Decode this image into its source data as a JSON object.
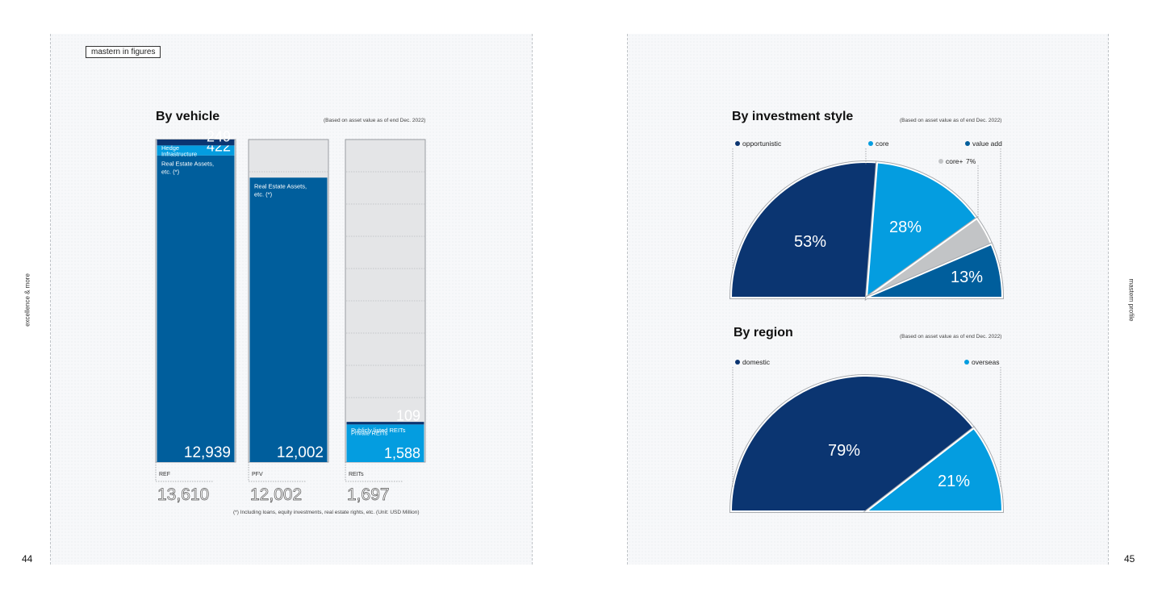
{
  "tag": "mastern in figures",
  "side_left": "excellence & more",
  "side_right": "mastern profile",
  "page_left": "44",
  "page_right": "45",
  "basis_note": "(Based on asset value as of end Dec. 2022)",
  "footnote": "(*) Including loans, equity investments, real estate rights, etc. (Unit: USD Million)",
  "colors": {
    "navy": "#0b3571",
    "mid": "#005e9c",
    "light": "#049de0",
    "grey": "#c2c4c6"
  },
  "chart_data": [
    {
      "type": "bar",
      "title": "By vehicle",
      "categories": [
        "REF",
        "PFV",
        "REITs"
      ],
      "totals": [
        "13,610",
        "12,002",
        "1,697"
      ],
      "ylim": [
        0,
        13610
      ],
      "stacks": [
        {
          "category": "REF",
          "segments": [
            {
              "name": "Real Estate Assets, etc. (*)",
              "value": 12939,
              "label": "12,939",
              "color": "#005e9c"
            },
            {
              "name": "Infrastructure",
              "value": 422,
              "label": "422",
              "color": "#049de0"
            },
            {
              "name": "Hedge",
              "value": 249,
              "label": "249",
              "color": "#0b3571"
            }
          ]
        },
        {
          "category": "PFV",
          "segments": [
            {
              "name": "Real Estate Assets, etc. (*)",
              "value": 12002,
              "label": "12,002",
              "color": "#005e9c"
            }
          ]
        },
        {
          "category": "REITs",
          "segments": [
            {
              "name": "Private REITs",
              "value": 1588,
              "label": "1,588",
              "color": "#049de0"
            },
            {
              "name": "Publicly listed REITs",
              "value": 109,
              "label": "109",
              "color": "#0b3571"
            }
          ]
        }
      ]
    },
    {
      "type": "pie",
      "title": "By investment style",
      "slices": [
        {
          "name": "opportunistic",
          "value": 53,
          "label": "53%",
          "color": "#0b3571"
        },
        {
          "name": "core",
          "value": 28,
          "label": "28%",
          "color": "#049de0"
        },
        {
          "name": "core+",
          "value": 7,
          "label": "7%",
          "color": "#c2c4c6"
        },
        {
          "name": "value add",
          "value": 13,
          "label": "13%",
          "color": "#005e9c"
        }
      ]
    },
    {
      "type": "pie",
      "title": "By region",
      "slices": [
        {
          "name": "domestic",
          "value": 79,
          "label": "79%",
          "color": "#0b3571"
        },
        {
          "name": "overseas",
          "value": 21,
          "label": "21%",
          "color": "#049de0"
        }
      ]
    }
  ]
}
